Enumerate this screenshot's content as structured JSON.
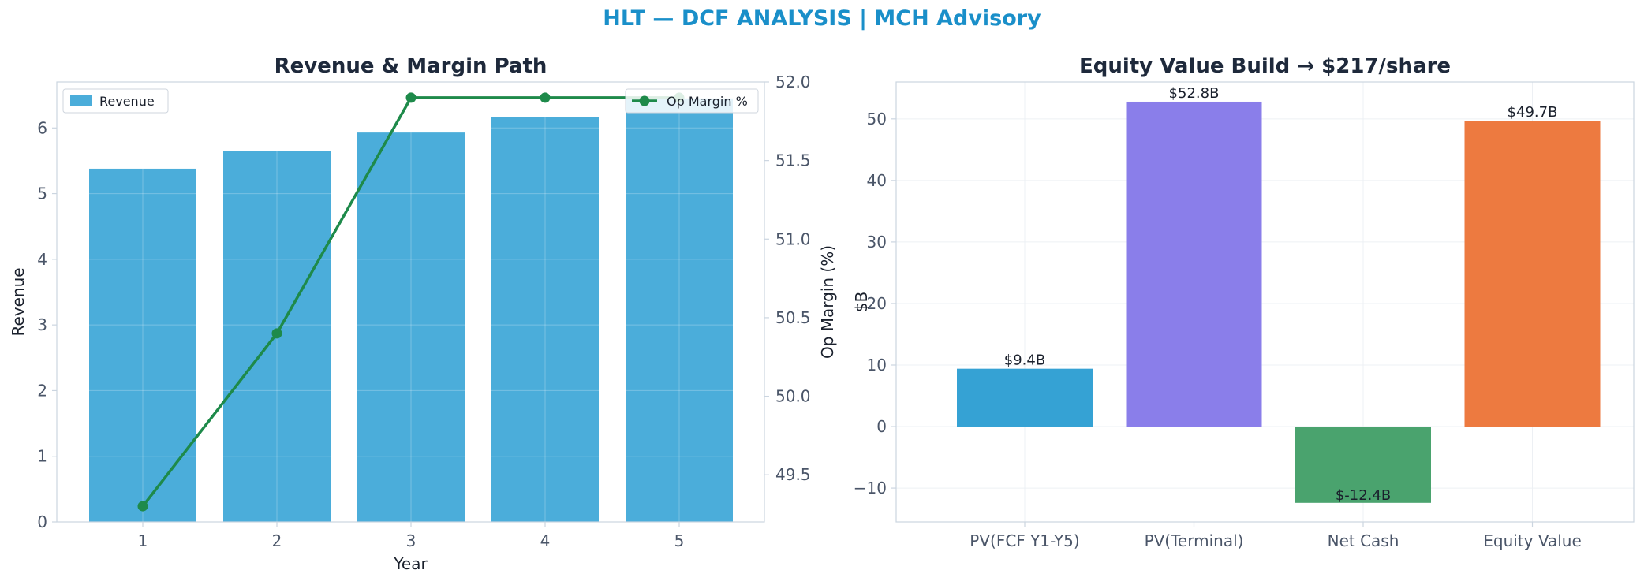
{
  "suptitle": "HLT — DCF ANALYSIS | MCH Advisory",
  "chart_data": [
    {
      "type": "bar",
      "title": "Revenue & Margin Path",
      "xlabel": "Year",
      "ylabel": "Revenue",
      "y2label": "Op Margin (%)",
      "categories": [
        "1",
        "2",
        "3",
        "4",
        "5"
      ],
      "series": [
        {
          "name": "Revenue",
          "type": "bar",
          "axis": "left",
          "color": "#4badda",
          "values": [
            5.38,
            5.65,
            5.93,
            6.17,
            6.45
          ]
        },
        {
          "name": "Op Margin %",
          "type": "line",
          "axis": "right",
          "color": "#1e8a4a",
          "values": [
            49.3,
            50.4,
            51.9,
            51.9,
            51.9
          ]
        }
      ],
      "ylim": [
        0,
        6.7
      ],
      "yticks": [
        0,
        1,
        2,
        3,
        4,
        5,
        6
      ],
      "y2lim": [
        49.2,
        52.0
      ],
      "y2ticks": [
        49.5,
        50.0,
        50.5,
        51.0,
        51.5,
        52.0
      ],
      "y2ticklabels": [
        "49.5",
        "50.0",
        "50.5",
        "51.0",
        "51.5",
        "52.0"
      ],
      "grid": true,
      "legend": [
        "upper-left",
        "upper-right"
      ]
    },
    {
      "type": "bar",
      "title": "Equity Value Build → $217/share",
      "xlabel": "",
      "ylabel": "$B",
      "categories": [
        "PV(FCF Y1-Y5)",
        "PV(Terminal)",
        "Net Cash",
        "Equity Value"
      ],
      "values": [
        9.4,
        52.8,
        -12.4,
        49.7
      ],
      "data_labels": [
        "$9.4B",
        "$52.8B",
        "$-12.4B",
        "$49.7B"
      ],
      "colors": [
        "#35a2d4",
        "#8a7eea",
        "#4aa36e",
        "#ed7a40"
      ],
      "ylim": [
        -15.5,
        56
      ],
      "yticks": [
        -10,
        0,
        10,
        20,
        30,
        40,
        50
      ],
      "yticklabels": [
        "−10",
        "0",
        "10",
        "20",
        "30",
        "40",
        "50"
      ],
      "grid": true
    }
  ]
}
